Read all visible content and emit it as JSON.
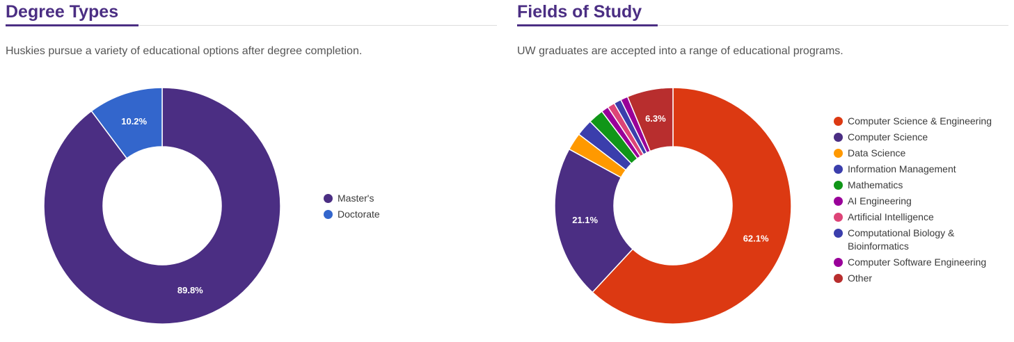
{
  "sections": [
    {
      "title": "Degree Types",
      "subtitle": "Huskies pursue a variety of educational options after degree completion."
    },
    {
      "title": "Fields of Study",
      "subtitle": "UW graduates are accepted into a range of educational programs."
    }
  ],
  "chart_data": [
    {
      "type": "pie",
      "title": "Degree Types",
      "donut": true,
      "legend_position": "right",
      "categories": [
        "Master's",
        "Doctorate"
      ],
      "values": [
        89.8,
        10.2
      ],
      "labels": [
        "89.8%",
        "10.2%"
      ],
      "colors": [
        "#4b2e83",
        "#3366cc"
      ]
    },
    {
      "type": "pie",
      "title": "Fields of Study",
      "donut": true,
      "legend_position": "right",
      "categories": [
        "Computer Science & Engineering",
        "Computer Science",
        "Data Science",
        "Information Management",
        "Mathematics",
        "AI Engineering",
        "Artificial Intelligence",
        "Computational Biology & Bioinformatics",
        "Computer Software Engineering",
        "Other"
      ],
      "values": [
        62.1,
        21.1,
        2.4,
        2.3,
        2.1,
        1.0,
        1.0,
        1.0,
        1.0,
        6.3
      ],
      "labels": [
        "62.1%",
        "21.1%",
        "",
        "",
        "",
        "",
        "",
        "",
        "",
        "6.3%"
      ],
      "colors": [
        "#dc3912",
        "#4b2e83",
        "#ff9900",
        "#3b3eac",
        "#109618",
        "#990099",
        "#dd4477",
        "#3b3eac",
        "#990099",
        "#b82e2e"
      ]
    }
  ]
}
